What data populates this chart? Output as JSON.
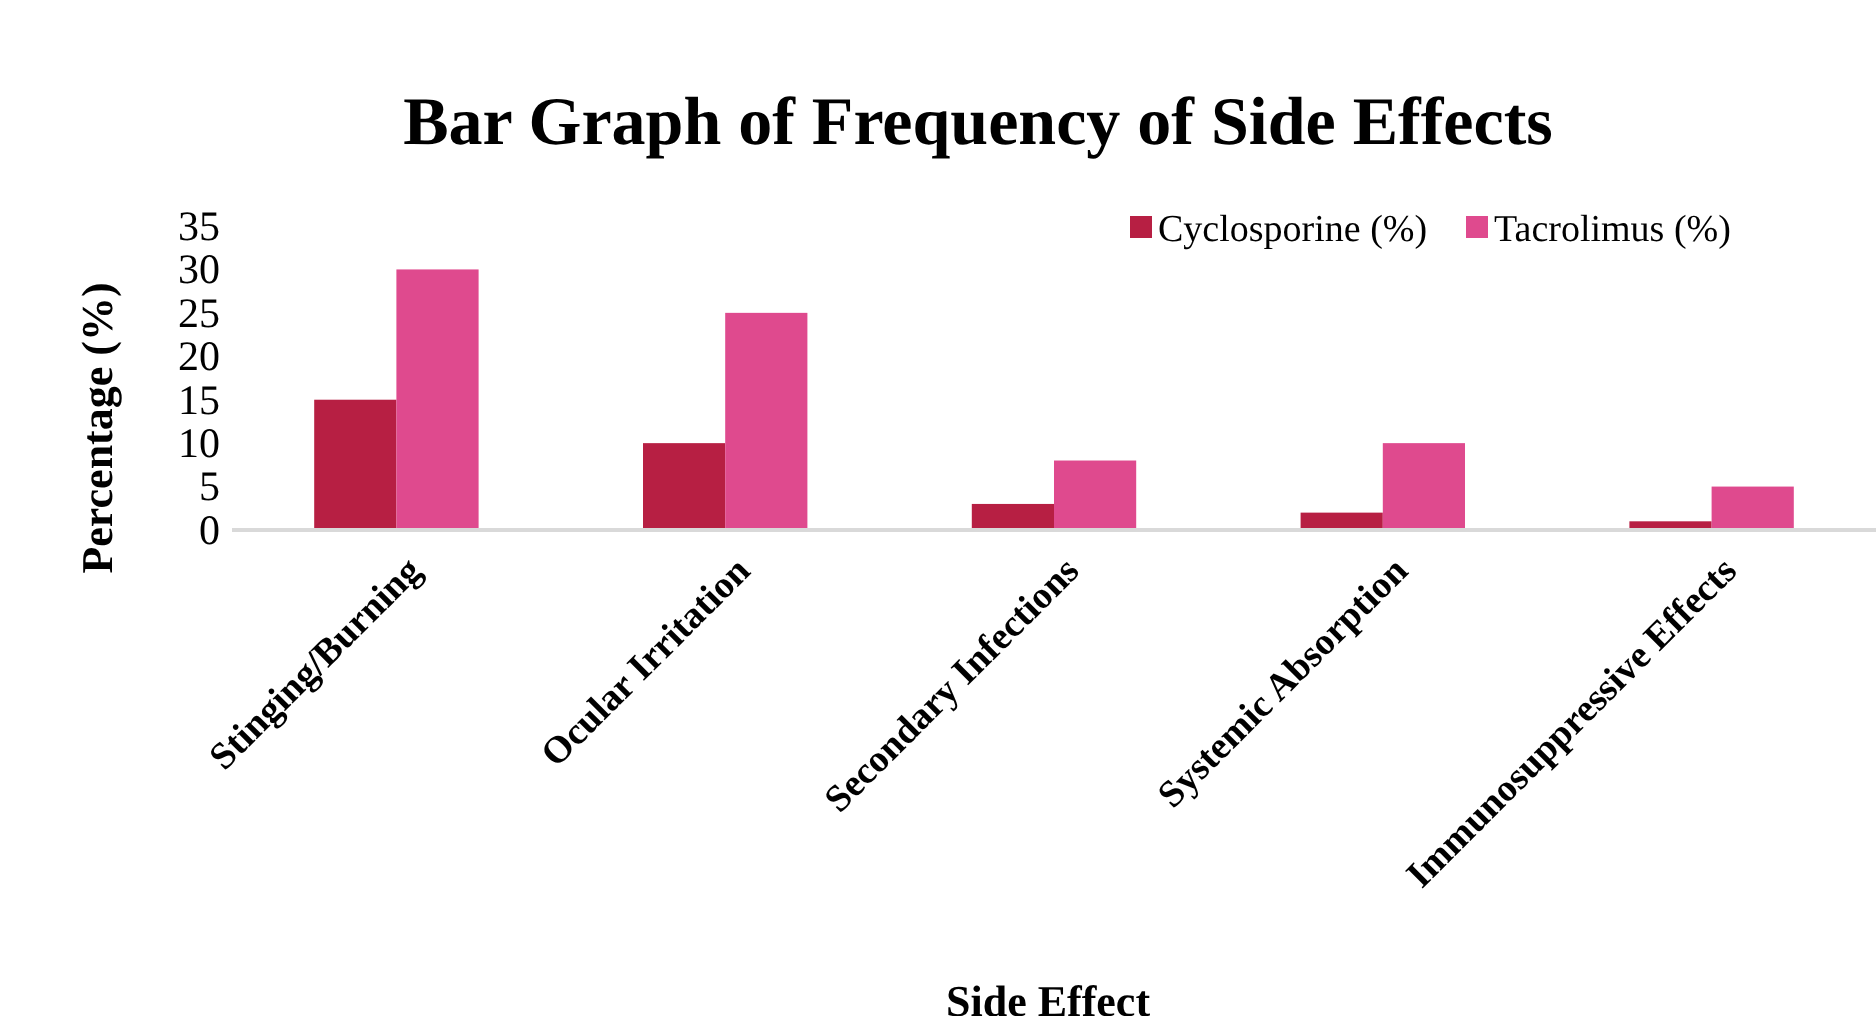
{
  "chart_data": {
    "type": "bar",
    "title": "Bar Graph of Frequency of Side Effects",
    "xlabel": "Side Effect",
    "ylabel": "Percentage (%)",
    "categories": [
      "Stinging/Burning",
      "Ocular Irritation",
      "Secondary Infections",
      "Systemic Absorption",
      "Immunosuppressive Effects"
    ],
    "series": [
      {
        "name": "Cyclosporine (%)",
        "color": "#b71f43",
        "values": [
          15,
          10,
          3,
          2,
          1
        ]
      },
      {
        "name": "Tacrolimus (%)",
        "color": "#df4a8e",
        "values": [
          30,
          25,
          8,
          10,
          5
        ]
      }
    ],
    "ylim": [
      0,
      35
    ],
    "yticks": [
      0,
      5,
      10,
      15,
      20,
      25,
      30,
      35
    ],
    "grid": false,
    "legend": "top right"
  }
}
